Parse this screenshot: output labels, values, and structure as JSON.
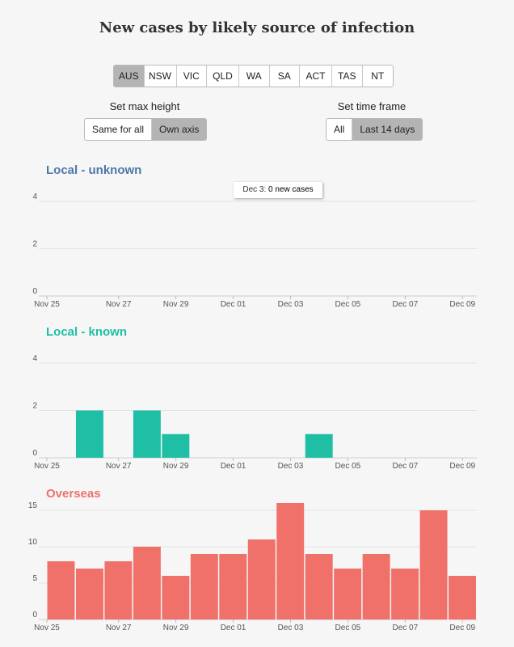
{
  "title": "New cases by likely source of infection",
  "states": [
    "AUS",
    "NSW",
    "VIC",
    "QLD",
    "WA",
    "SA",
    "ACT",
    "TAS",
    "NT"
  ],
  "active_state": "AUS",
  "height_control": {
    "label": "Set max height",
    "options": [
      "Same for all",
      "Own axis"
    ],
    "active": "Own axis"
  },
  "time_control": {
    "label": "Set time frame",
    "options": [
      "All",
      "Last 14 days"
    ],
    "active": "Last 14 days"
  },
  "tooltip": {
    "date": "Dec 3:",
    "value": "0 new cases"
  },
  "colors": {
    "local_unknown": "#4f77a8",
    "local_known": "#1fbfa5",
    "overseas": "#f0716a"
  },
  "chart_data": [
    {
      "type": "bar",
      "title": "Local - unknown",
      "color": "#4f77a8",
      "categories": [
        "Nov 25",
        "Nov 26",
        "Nov 27",
        "Nov 28",
        "Nov 29",
        "Nov 30",
        "Dec 01",
        "Dec 02",
        "Dec 03",
        "Dec 04",
        "Dec 05",
        "Dec 06",
        "Dec 07",
        "Dec 08",
        "Dec 09"
      ],
      "values": [
        0,
        0,
        0,
        0,
        0,
        0,
        0,
        0,
        0,
        0,
        0,
        0,
        0,
        0,
        0
      ],
      "yticks": [
        0,
        2,
        4
      ],
      "ylim": [
        0,
        4
      ],
      "xticks": [
        "Nov 25",
        "Nov 27",
        "Nov 29",
        "Dec 01",
        "Dec 03",
        "Dec 05",
        "Dec 07",
        "Dec 09"
      ]
    },
    {
      "type": "bar",
      "title": "Local - known",
      "color": "#1fbfa5",
      "categories": [
        "Nov 25",
        "Nov 26",
        "Nov 27",
        "Nov 28",
        "Nov 29",
        "Nov 30",
        "Dec 01",
        "Dec 02",
        "Dec 03",
        "Dec 04",
        "Dec 05",
        "Dec 06",
        "Dec 07",
        "Dec 08",
        "Dec 09"
      ],
      "values": [
        0,
        2,
        0,
        2,
        1,
        0,
        0,
        0,
        0,
        1,
        0,
        0,
        0,
        0,
        0
      ],
      "yticks": [
        0,
        2,
        4
      ],
      "ylim": [
        0,
        4
      ],
      "xticks": [
        "Nov 25",
        "Nov 27",
        "Nov 29",
        "Dec 01",
        "Dec 03",
        "Dec 05",
        "Dec 07",
        "Dec 09"
      ]
    },
    {
      "type": "bar",
      "title": "Overseas",
      "color": "#f0716a",
      "categories": [
        "Nov 25",
        "Nov 26",
        "Nov 27",
        "Nov 28",
        "Nov 29",
        "Nov 30",
        "Dec 01",
        "Dec 02",
        "Dec 03",
        "Dec 04",
        "Dec 05",
        "Dec 06",
        "Dec 07",
        "Dec 08",
        "Dec 09"
      ],
      "values": [
        8,
        7,
        8,
        10,
        6,
        9,
        9,
        11,
        16,
        9,
        7,
        9,
        7,
        15,
        6
      ],
      "yticks": [
        0,
        5,
        10,
        15
      ],
      "ylim": [
        0,
        17
      ],
      "xticks": [
        "Nov 25",
        "Nov 27",
        "Nov 29",
        "Dec 01",
        "Dec 03",
        "Dec 05",
        "Dec 07",
        "Dec 09"
      ]
    }
  ]
}
